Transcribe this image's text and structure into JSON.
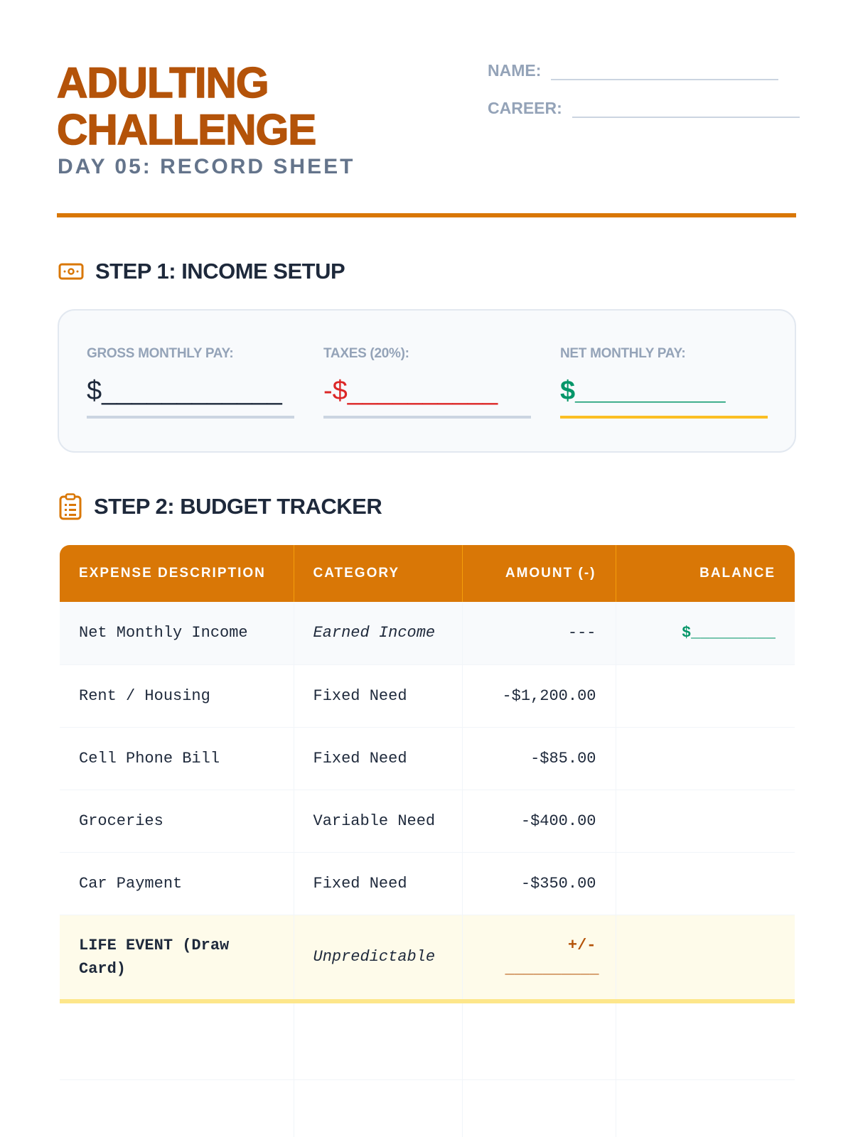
{
  "header": {
    "title_line1": "ADULTING",
    "title_line2": "CHALLENGE",
    "subtitle": "DAY 05: RECORD SHEET",
    "name_label": "NAME:",
    "career_label": "CAREER:"
  },
  "step1": {
    "heading": "STEP 1: INCOME SETUP",
    "icon": "money-bill-icon",
    "gross": {
      "label": "GROSS MONTHLY PAY:",
      "value": "$____________"
    },
    "taxes": {
      "label": "TAXES (20%):",
      "value": "-$__________"
    },
    "net": {
      "label": "NET MONTHLY PAY:",
      "value": "$__________"
    }
  },
  "step2": {
    "heading": "STEP 2: BUDGET TRACKER",
    "icon": "clipboard-list-icon",
    "columns": [
      "EXPENSE DESCRIPTION",
      "CATEGORY",
      "AMOUNT (-)",
      "BALANCE"
    ],
    "rows": [
      {
        "description": "Net Monthly Income",
        "category": "Earned Income",
        "amount": "---",
        "balance": "$_________"
      },
      {
        "description": "Rent / Housing",
        "category": "Fixed Need",
        "amount": "-$1,200.00",
        "balance": ""
      },
      {
        "description": "Cell Phone Bill",
        "category": "Fixed Need",
        "amount": "-$85.00",
        "balance": ""
      },
      {
        "description": "Groceries",
        "category": "Variable Need",
        "amount": "-$400.00",
        "balance": ""
      },
      {
        "description": "Car Payment",
        "category": "Fixed Need",
        "amount": "-$350.00",
        "balance": ""
      },
      {
        "description": "LIFE EVENT (Draw Card)",
        "category": "Unpredictable",
        "amount": "+/- __________",
        "balance": ""
      }
    ]
  },
  "colors": {
    "accent": "#d97706",
    "title": "#b45309",
    "tax": "#dc2626",
    "net": "#059669",
    "highlight": "#fbbf24"
  }
}
